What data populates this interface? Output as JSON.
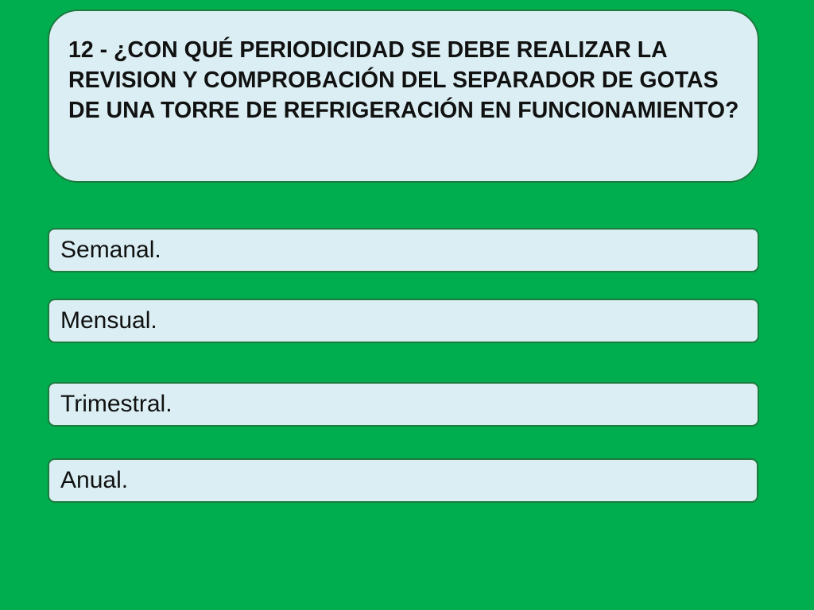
{
  "question": {
    "text": "12 - ¿CON QUÉ PERIODICIDAD SE DEBE REALIZAR LA REVISION Y COMPROBACIÓN DEL SEPARADOR DE GOTAS DE UNA TORRE DE REFRIGERACIÓN EN FUNCIONAMIENTO?"
  },
  "options": [
    {
      "label": "Semanal."
    },
    {
      "label": "Mensual."
    },
    {
      "label": "Trimestral."
    },
    {
      "label": "Anual."
    }
  ],
  "colors": {
    "background": "#00ad4f",
    "box_fill": "#daeef3",
    "box_border": "#1f7a3d",
    "text": "#111111"
  }
}
